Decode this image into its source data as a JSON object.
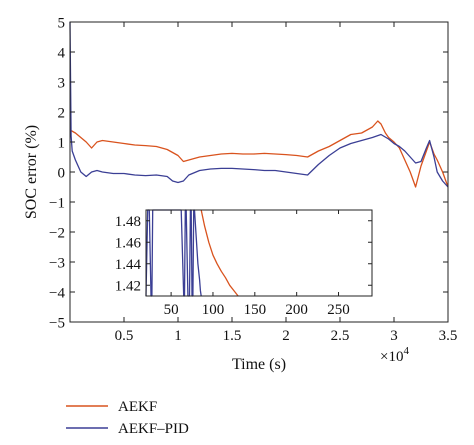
{
  "chart_data": [
    {
      "type": "line",
      "title": "",
      "xlabel": "Time (s)",
      "ylabel": "SOC error (%)",
      "x_multiplier_label": "×10",
      "x_multiplier_exponent": "4",
      "xlim": [
        0,
        3.5
      ],
      "ylim": [
        -5,
        5
      ],
      "xticks": [
        0.5,
        1,
        1.5,
        2,
        2.5,
        3,
        3.5
      ],
      "xtick_labels": [
        "0.5",
        "1",
        "1.5",
        "2",
        "2.5",
        "3",
        "3.5"
      ],
      "yticks": [
        -5,
        -4,
        -3,
        -2,
        -1,
        0,
        1,
        2,
        3,
        4,
        5
      ],
      "ytick_labels": [
        "−5",
        "−4",
        "−3",
        "−2",
        "−1",
        "0",
        "1",
        "2",
        "3",
        "4",
        "5"
      ],
      "grid": false,
      "legend_position": "below plot, left",
      "series": [
        {
          "name": "AEKF",
          "color": "#d9531e",
          "x": [
            0.0,
            0.05,
            0.1,
            0.15,
            0.2,
            0.25,
            0.3,
            0.4,
            0.5,
            0.6,
            0.7,
            0.8,
            0.9,
            1.0,
            1.05,
            1.1,
            1.2,
            1.3,
            1.4,
            1.5,
            1.6,
            1.7,
            1.8,
            1.9,
            2.0,
            2.1,
            2.2,
            2.3,
            2.4,
            2.5,
            2.6,
            2.7,
            2.8,
            2.85,
            2.88,
            2.92,
            2.95,
            3.0,
            3.05,
            3.1,
            3.15,
            3.2,
            3.25,
            3.3,
            3.33,
            3.37,
            3.4,
            3.45,
            3.5
          ],
          "y": [
            1.4,
            1.3,
            1.15,
            1.0,
            0.8,
            1.0,
            1.05,
            1.0,
            0.95,
            0.9,
            0.88,
            0.85,
            0.75,
            0.55,
            0.35,
            0.4,
            0.5,
            0.55,
            0.6,
            0.62,
            0.6,
            0.6,
            0.62,
            0.6,
            0.58,
            0.55,
            0.5,
            0.7,
            0.85,
            1.05,
            1.25,
            1.3,
            1.5,
            1.7,
            1.6,
            1.3,
            1.15,
            1.0,
            0.8,
            0.4,
            0.0,
            -0.5,
            0.2,
            0.7,
            1.0,
            0.6,
            0.4,
            0.0,
            -0.5
          ]
        },
        {
          "name": "AEKF–PID",
          "color": "#3b3f95",
          "x": [
            0.0,
            0.01,
            0.02,
            0.05,
            0.1,
            0.15,
            0.2,
            0.25,
            0.3,
            0.4,
            0.5,
            0.6,
            0.7,
            0.8,
            0.9,
            0.95,
            1.0,
            1.05,
            1.1,
            1.2,
            1.3,
            1.4,
            1.5,
            1.6,
            1.7,
            1.8,
            1.9,
            2.0,
            2.1,
            2.2,
            2.3,
            2.4,
            2.5,
            2.6,
            2.7,
            2.8,
            2.88,
            2.95,
            3.0,
            3.05,
            3.1,
            3.15,
            3.2,
            3.25,
            3.3,
            3.33,
            3.37,
            3.4,
            3.45,
            3.5
          ],
          "y": [
            5.0,
            1.2,
            0.7,
            0.4,
            0.0,
            -0.15,
            0.0,
            0.05,
            0.0,
            -0.05,
            -0.05,
            -0.1,
            -0.12,
            -0.1,
            -0.15,
            -0.3,
            -0.35,
            -0.3,
            -0.1,
            0.05,
            0.1,
            0.12,
            0.12,
            0.1,
            0.08,
            0.05,
            0.05,
            0.0,
            -0.05,
            -0.1,
            0.25,
            0.55,
            0.8,
            0.95,
            1.05,
            1.15,
            1.25,
            1.1,
            0.95,
            0.85,
            0.7,
            0.5,
            0.3,
            0.35,
            0.8,
            1.05,
            0.5,
            0.0,
            -0.3,
            -0.5
          ]
        }
      ]
    },
    {
      "type": "line",
      "title": "",
      "xlabel": "",
      "ylabel": "",
      "xlim": [
        20,
        290
      ],
      "ylim": [
        1.41,
        1.49
      ],
      "xticks": [
        50,
        100,
        150,
        200,
        250
      ],
      "xtick_labels": [
        "50",
        "100",
        "150",
        "200",
        "250"
      ],
      "yticks": [
        1.42,
        1.44,
        1.46,
        1.48
      ],
      "ytick_labels": [
        "1.42",
        "1.44",
        "1.46",
        "1.48"
      ],
      "grid": false,
      "series": [
        {
          "name": "AEKF",
          "color": "#d9531e",
          "x": [
            86,
            90,
            95,
            100,
            105,
            110,
            115,
            120,
            125,
            130
          ],
          "y": [
            1.49,
            1.475,
            1.46,
            1.448,
            1.44,
            1.433,
            1.427,
            1.42,
            1.415,
            1.41
          ]
        },
        {
          "name": "AEKF–PID",
          "color": "#3b3f95",
          "x": [
            20,
            22,
            24,
            26,
            27,
            28,
            30,
            45,
            62,
            65,
            66,
            67,
            68,
            70,
            72,
            73,
            74,
            75,
            76,
            77,
            78,
            80,
            82,
            84,
            85,
            86
          ],
          "y": [
            1.41,
            1.49,
            1.49,
            1.41,
            1.41,
            1.49,
            1.49,
            1.49,
            1.49,
            1.41,
            1.41,
            1.49,
            1.49,
            1.41,
            1.41,
            1.49,
            1.49,
            1.41,
            1.41,
            1.49,
            1.49,
            1.465,
            1.44,
            1.425,
            1.415,
            1.41
          ]
        }
      ]
    }
  ]
}
